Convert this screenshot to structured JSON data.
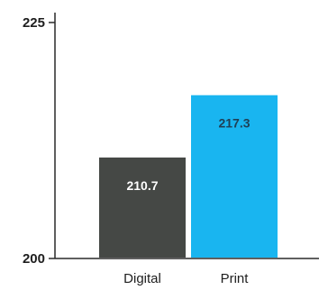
{
  "chart_data": {
    "type": "bar",
    "title": "",
    "xlabel": "",
    "ylabel": "",
    "categories": [
      "Digital",
      "Print"
    ],
    "values": [
      210.7,
      217.3
    ],
    "value_labels": [
      "210.7",
      "217.3"
    ],
    "ylim": [
      200,
      225
    ],
    "yticks": [
      200,
      225
    ],
    "ytick_labels": [
      "200",
      "225"
    ],
    "grid": false,
    "legend": "none",
    "bar_colors": [
      "#454845",
      "#19b5f0"
    ],
    "label_colors": [
      "#ffffff",
      "#1f3f55"
    ],
    "axis_color": "#2a2a2a"
  }
}
